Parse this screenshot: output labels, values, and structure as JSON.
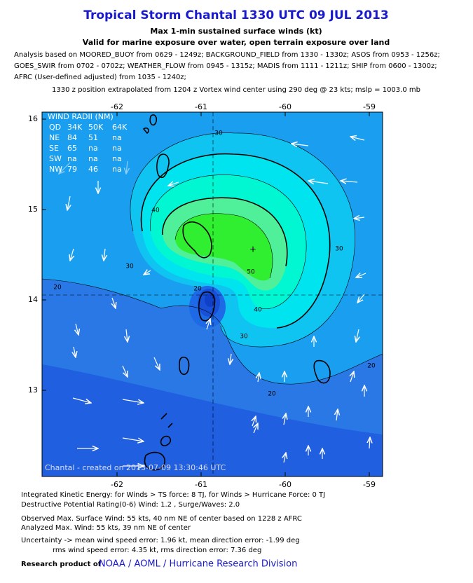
{
  "header": {
    "title": "Tropical Storm Chantal 1330 UTC 09 JUL 2013",
    "subtitle": "Max 1-min sustained surface winds (kt)",
    "valid": "Valid for marine exposure over water, open terrain exposure over land",
    "analysis": [
      "Analysis based on MOORED_BUOY from 0629 - 1249z; BACKGROUND_FIELD from 1330 - 1330z; ASOS from 0953 - 1256z;",
      "GOES_SWIR from 0702 - 0702z; WEATHER_FLOW from 0945 - 1315z; MADIS from 1111 - 1211z; SHIP from 0600 - 1300z;",
      "AFRC (User-defined adjusted) from 1035 - 1240z;"
    ],
    "position": "1330 z position extrapolated from 1204 z Vortex wind center using 290 deg @ 23 kts; mslp = 1003.0 mb"
  },
  "map": {
    "lon_labels": [
      -62,
      -61,
      -60,
      -59
    ],
    "lat_labels": [
      16,
      15,
      14,
      13
    ],
    "wind_radii": {
      "title": "WIND RADII (NM)",
      "rows": [
        [
          "QD",
          "34K",
          "50K",
          "64K"
        ],
        [
          "NE",
          "84",
          "51",
          "na"
        ],
        [
          "SE",
          "65",
          "na",
          "na"
        ],
        [
          "SW",
          "na",
          "na",
          "na"
        ],
        [
          "NW",
          "79",
          "46",
          "na"
        ]
      ]
    },
    "contour_labels": [
      "30",
      "40",
      "30",
      "30",
      "50",
      "40",
      "30",
      "20",
      "20",
      "20",
      "20"
    ],
    "credit": "Chantal - created on 2013-07-09 13:30:46 UTC"
  },
  "footer": {
    "lines": [
      "Integrated Kinetic Energy: for Winds > TS force: 8 TJ, for Winds > Hurricane Force: 0 TJ",
      "Destructive Potential Rating(0-6)  Wind: 1.2 , Surge/Waves: 2.0",
      "Observed Max. Surface Wind: 55 kts, 40 nm NE of center based on 1228 z AFRC",
      "Analyzed Max. Wind: 55 kts, 39 nm  NE of center",
      "Uncertainty -> mean wind speed error: 1.96 kt, mean direction error:  -1.99 deg",
      "rms wind speed error: 4.35 kt, rms direction error: 7.36 deg"
    ],
    "research_label": "Research product of",
    "research_org": "NOAA / AOML / Hurricane Research Division"
  }
}
